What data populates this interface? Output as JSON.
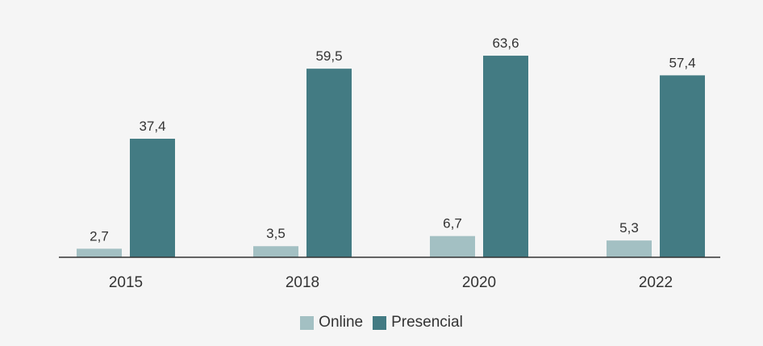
{
  "chart_data": {
    "type": "bar",
    "categories": [
      "2015",
      "2018",
      "2020",
      "2022"
    ],
    "series": [
      {
        "name": "Online",
        "values": [
          2.7,
          3.5,
          6.7,
          5.3
        ],
        "labels": [
          "2,7",
          "3,5",
          "6,7",
          "5,3"
        ],
        "color": "#a3c0c3"
      },
      {
        "name": "Presencial",
        "values": [
          37.4,
          59.5,
          63.6,
          57.4
        ],
        "labels": [
          "37,4",
          "59,5",
          "63,6",
          "57,4"
        ],
        "color": "#437b83"
      }
    ],
    "title": "",
    "xlabel": "",
    "ylabel": "",
    "ylim": [
      0,
      70
    ],
    "grid": false,
    "legend": "bottom-center"
  },
  "legend": {
    "items": [
      {
        "label": "Online",
        "color": "#a3c0c3"
      },
      {
        "label": "Presencial",
        "color": "#437b83"
      }
    ]
  },
  "colors": {
    "background": "#f5f5f5",
    "axis": "#333333",
    "text": "#333333"
  }
}
